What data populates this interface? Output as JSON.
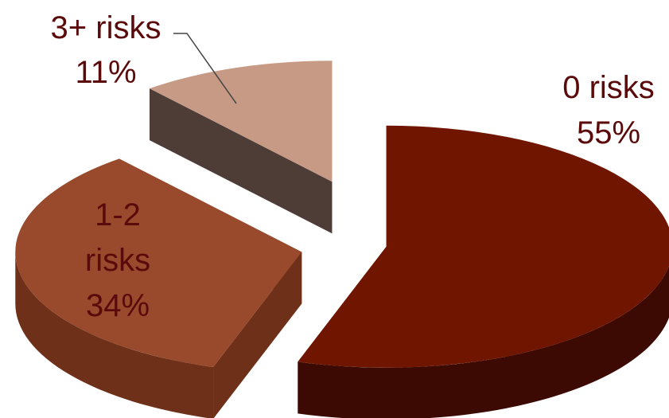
{
  "chart_data": {
    "type": "pie",
    "style": "3d-exploded",
    "slices": [
      {
        "category": "0 risks",
        "value": 55,
        "value_label": "55%",
        "color": "#6f1500",
        "side_color": "#3c0a02"
      },
      {
        "category": "1-2 risks",
        "value": 34,
        "value_label": "34%",
        "color": "#9a4a2c",
        "side_color": "#6e3018"
      },
      {
        "category": "3+ risks",
        "value": 11,
        "value_label": "11%",
        "color": "#c69a85",
        "side_color": "#4e3c36"
      }
    ]
  }
}
